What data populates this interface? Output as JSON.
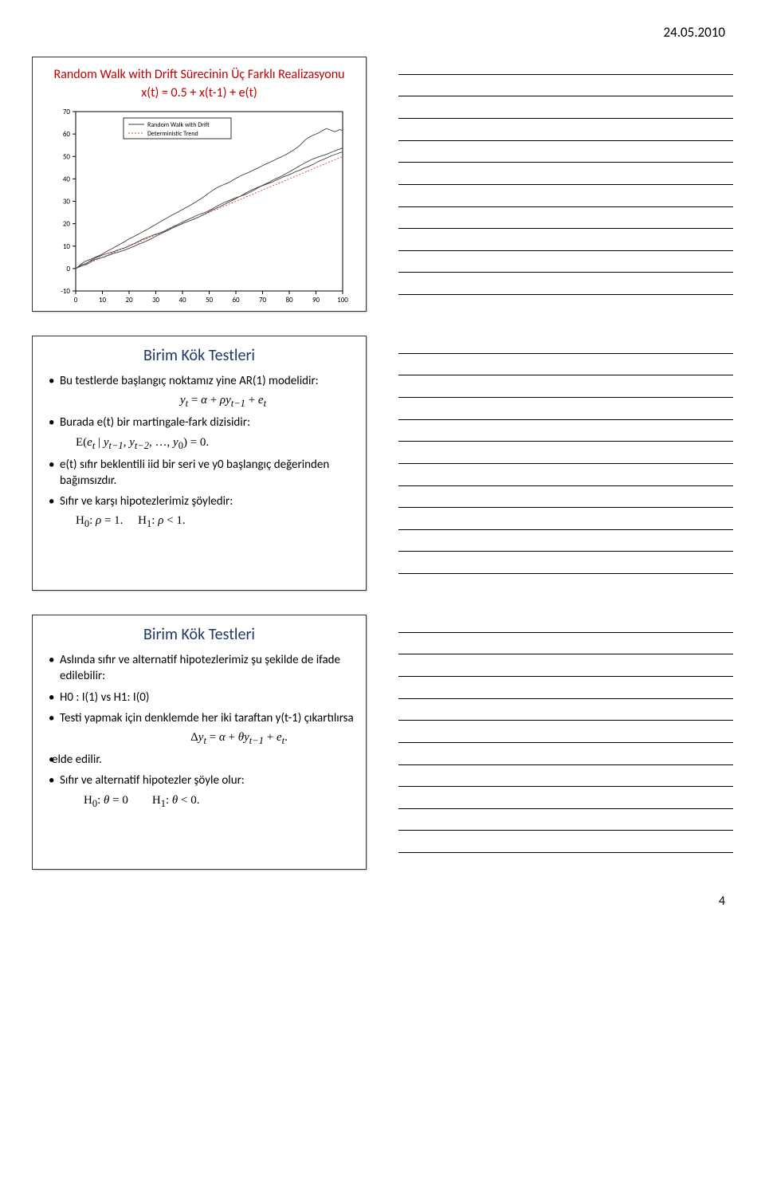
{
  "date_header": "24.05.2010",
  "page_number": "4",
  "card_chart": {
    "heading1": "Random Walk with Drift Sürecinin Üç Farklı Realizasyonu",
    "heading2": "x(t) = 0.5 + x(t-1) + e(t)",
    "legend": {
      "rw": "Random Walk with Drift",
      "trend": "Deterministic Trend"
    },
    "type": "line",
    "xlim": [
      0,
      100
    ],
    "ylim": [
      -10,
      70
    ],
    "xticks": [
      0,
      10,
      20,
      30,
      40,
      50,
      60,
      70,
      80,
      90,
      100
    ],
    "yticks": [
      -10,
      0,
      10,
      20,
      30,
      40,
      50,
      60,
      70
    ],
    "colors": {
      "axis": "#000000",
      "grid": "#000000",
      "series": [
        "#404040",
        "#404040",
        "#404040"
      ],
      "trend": "#d94a3a",
      "legend_box": "#000000",
      "background": "#ffffff"
    },
    "line_width": {
      "series": 0.9,
      "trend": 0.9
    },
    "tick_fontsize": 9,
    "trend_line": {
      "y0": 0,
      "y100": 50,
      "dash": "2,2"
    },
    "series_data": {
      "s1": [
        0,
        0.8,
        1.6,
        2.0,
        2.3,
        3.1,
        3.8,
        4.4,
        5.1,
        5.5,
        6.0,
        6.4,
        6.8,
        7.1,
        7.5,
        7.9,
        8.4,
        8.8,
        9.1,
        9.6,
        10.1,
        10.7,
        11.2,
        11.8,
        12.4,
        13.0,
        13.5,
        14.0,
        14.4,
        14.9,
        15.3,
        15.7,
        16.1,
        16.6,
        17.2,
        17.8,
        18.4,
        19.0,
        19.5,
        20.1,
        20.7,
        21.3,
        21.8,
        22.4,
        22.9,
        23.5,
        24.0,
        24.4,
        24.8,
        25.3,
        25.9,
        26.5,
        27.2,
        27.9,
        28.5,
        29.1,
        29.6,
        30.1,
        30.6,
        31.1,
        31.6,
        32.0,
        32.4,
        32.8,
        33.3,
        33.9,
        34.5,
        35.1,
        35.8,
        36.5,
        37.0,
        37.4,
        37.9,
        38.3,
        38.8,
        39.4,
        39.9,
        40.5,
        41.0,
        41.4,
        41.9,
        42.4,
        43.0,
        43.5,
        43.9,
        44.5,
        45.0,
        45.4,
        46.0,
        46.5,
        47.2,
        47.8,
        48.3,
        48.8,
        49.3,
        49.9,
        50.4,
        50.8,
        51.2,
        51.7,
        52.0
      ],
      "s2": [
        0,
        0.6,
        1.1,
        1.5,
        1.8,
        2.5,
        3.3,
        3.9,
        4.3,
        4.7,
        5.0,
        5.3,
        5.8,
        6.2,
        6.7,
        7.0,
        7.3,
        7.7,
        8.1,
        8.6,
        9.0,
        9.5,
        10.0,
        10.6,
        11.1,
        11.5,
        12.0,
        12.6,
        13.1,
        13.7,
        14.4,
        15.0,
        15.6,
        16.2,
        16.7,
        17.3,
        17.9,
        18.5,
        19.0,
        19.5,
        20.1,
        20.6,
        21.0,
        21.5,
        21.9,
        22.4,
        22.9,
        23.5,
        24.1,
        24.7,
        25.4,
        26.0,
        26.5,
        27.1,
        27.6,
        28.2,
        28.8,
        29.4,
        30.0,
        30.6,
        31.2,
        31.9,
        32.5,
        33.2,
        33.9,
        34.5,
        35.1,
        35.6,
        36.1,
        36.6,
        37.1,
        37.7,
        38.2,
        38.8,
        39.5,
        40.1,
        40.6,
        41.2,
        41.8,
        42.5,
        43.1,
        43.8,
        44.5,
        45.2,
        45.9,
        46.5,
        47.2,
        47.8,
        48.4,
        48.9,
        49.3,
        49.8,
        50.2,
        50.6,
        51.0,
        51.5,
        52.0,
        52.4,
        52.9,
        53.3,
        53.8
      ],
      "s3": [
        0,
        0.9,
        1.9,
        2.8,
        3.4,
        3.9,
        4.3,
        4.9,
        5.4,
        5.9,
        6.5,
        7.2,
        7.9,
        8.5,
        9.1,
        9.8,
        10.5,
        11.1,
        11.8,
        12.5,
        13.2,
        13.8,
        14.4,
        15.0,
        15.7,
        16.3,
        17.0,
        17.6,
        18.3,
        19.0,
        19.7,
        20.4,
        21.1,
        21.8,
        22.4,
        23.1,
        23.8,
        24.4,
        25.0,
        25.7,
        26.3,
        27.0,
        27.6,
        28.3,
        29.0,
        29.7,
        30.5,
        31.2,
        32.0,
        32.9,
        33.8,
        34.6,
        35.4,
        36.1,
        36.7,
        37.2,
        37.7,
        38.2,
        38.8,
        39.5,
        40.2,
        40.8,
        41.5,
        42.0,
        42.5,
        43.0,
        43.6,
        44.2,
        44.7,
        45.3,
        45.9,
        46.5,
        47.0,
        47.6,
        48.1,
        48.7,
        49.3,
        49.8,
        50.4,
        51.0,
        51.7,
        52.4,
        53.2,
        54.0,
        55.0,
        56.2,
        57.4,
        58.2,
        58.9,
        59.5,
        60.0,
        60.5,
        61.2,
        61.9,
        62.4,
        62.0,
        61.5,
        61.0,
        61.5,
        62.0,
        61.5
      ]
    }
  },
  "card_tests1": {
    "title": "Birim Kök Testleri",
    "b1": "Bu testlerde başlangıç noktamız yine AR(1) modelidir:",
    "eq1_html": "<i>y<sub>t</sub></i> = <i>α</i> + <i>ρy<sub>t−1</sub></i> + <i>e<sub>t</sub></i>",
    "b2": "Burada e(t) bir martingale-fark dizisidir:",
    "eq2_html": "E(<i>e<sub>t</sub></i> | <i>y<sub>t−1</sub></i>, <i>y<sub>t−2</sub></i>, …, <i>y</i><sub>0</sub>) = 0.",
    "b3": "e(t) sıfır beklentili iid bir seri ve y0 başlangıç değerinden bağımsızdır.",
    "b4": "Sıfır ve karşı hipotezlerimiz şöyledir:",
    "eq3_html": "H<sub>0</sub>: <i>ρ</i> = 1. &nbsp;&nbsp;&nbsp; H<sub>1</sub>: <i>ρ</i> &lt; 1."
  },
  "card_tests2": {
    "title": "Birim Kök Testleri",
    "b1": "Aslında sıfır ve alternatif hipotezlerimiz şu şekilde de ifade edilebilir:",
    "b2": "H0 : I(1) vs H1: I(0)",
    "b3": "Testi yapmak için denklemde her iki taraftan y(t-1) çıkartılırsa",
    "eq1_html": "Δ<i>y<sub>t</sub></i> = <i>α</i> + <i>θy<sub>t−1</sub></i> + <i>e<sub>t</sub></i>.",
    "b4": "elde edilir.",
    "b5": "Sıfır ve alternatif hipotezler şöyle olur:",
    "eq2_html": "H<sub>0</sub>: <i>θ</i> = 0 &nbsp;&nbsp;&nbsp;&nbsp;&nbsp;&nbsp; H<sub>1</sub>: <i>θ</i> &lt; 0."
  }
}
